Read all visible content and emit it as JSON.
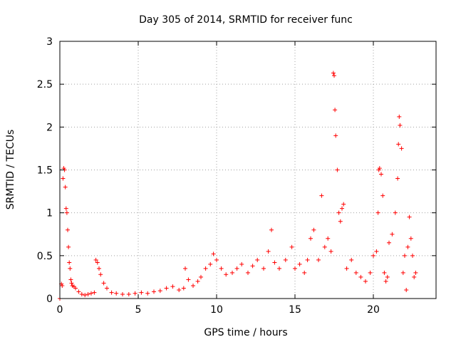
{
  "chart_data": {
    "type": "scatter",
    "title": "Day 305 of 2014, SRMTID for receiver func",
    "xlabel": "GPS time / hours",
    "ylabel": "SRMTID / TECUs",
    "xlim": [
      0,
      24
    ],
    "ylim": [
      0,
      3
    ],
    "x_ticks": [
      0,
      5,
      10,
      15,
      20
    ],
    "x_tick_labels": [
      "0",
      "5",
      "10",
      "15",
      "20"
    ],
    "y_ticks": [
      0,
      0.5,
      1,
      1.5,
      2,
      2.5,
      3
    ],
    "y_tick_labels": [
      "0",
      "0.5",
      "1",
      "1.5",
      "2",
      "2.5",
      "3"
    ],
    "grid": true,
    "marker": "plus",
    "colors": {
      "series": "#ff0000",
      "grid": "#a0a0a0",
      "axes": "#000000"
    },
    "series": [
      {
        "name": "SRMTID",
        "x": [
          0.0,
          0.1,
          0.15,
          0.2,
          0.25,
          0.3,
          0.35,
          0.4,
          0.45,
          0.5,
          0.55,
          0.6,
          0.65,
          0.7,
          0.75,
          0.8,
          0.9,
          1.0,
          1.2,
          1.4,
          1.6,
          1.8,
          2.0,
          2.2,
          2.3,
          2.4,
          2.5,
          2.6,
          2.8,
          3.0,
          3.3,
          3.6,
          4.0,
          4.4,
          4.8,
          5.2,
          5.6,
          6.0,
          6.4,
          6.8,
          7.2,
          7.6,
          7.9,
          8.0,
          8.2,
          8.5,
          8.8,
          9.0,
          9.3,
          9.6,
          9.8,
          10.0,
          10.3,
          10.6,
          11.0,
          11.3,
          11.6,
          12.0,
          12.3,
          12.6,
          13.0,
          13.3,
          13.5,
          13.7,
          14.0,
          14.4,
          14.8,
          15.0,
          15.3,
          15.6,
          15.8,
          16.0,
          16.2,
          16.5,
          16.7,
          16.9,
          17.1,
          17.3,
          17.45,
          17.5,
          17.55,
          17.6,
          17.7,
          17.8,
          17.9,
          18.0,
          18.1,
          18.3,
          18.6,
          18.9,
          19.2,
          19.5,
          19.8,
          20.0,
          20.2,
          20.3,
          20.35,
          20.4,
          20.5,
          20.6,
          20.7,
          20.8,
          20.9,
          21.0,
          21.2,
          21.4,
          21.55,
          21.6,
          21.65,
          21.7,
          21.8,
          21.9,
          22.0,
          22.1,
          22.2,
          22.3,
          22.4,
          22.5,
          22.6,
          22.7
        ],
        "y": [
          0.0,
          0.17,
          0.15,
          1.4,
          1.52,
          1.5,
          1.3,
          1.05,
          1.0,
          0.8,
          0.6,
          0.42,
          0.35,
          0.22,
          0.18,
          0.15,
          0.14,
          0.12,
          0.08,
          0.05,
          0.04,
          0.05,
          0.06,
          0.07,
          0.45,
          0.42,
          0.35,
          0.28,
          0.18,
          0.12,
          0.07,
          0.06,
          0.05,
          0.05,
          0.06,
          0.07,
          0.06,
          0.08,
          0.09,
          0.12,
          0.14,
          0.1,
          0.12,
          0.35,
          0.22,
          0.15,
          0.2,
          0.25,
          0.35,
          0.4,
          0.52,
          0.45,
          0.35,
          0.28,
          0.3,
          0.35,
          0.4,
          0.3,
          0.38,
          0.45,
          0.35,
          0.55,
          0.8,
          0.42,
          0.35,
          0.45,
          0.6,
          0.35,
          0.4,
          0.3,
          0.45,
          0.7,
          0.8,
          0.45,
          1.2,
          0.6,
          0.7,
          0.55,
          2.63,
          2.6,
          2.2,
          1.9,
          1.5,
          1.0,
          0.9,
          1.05,
          1.1,
          0.35,
          0.45,
          0.3,
          0.25,
          0.2,
          0.3,
          0.5,
          0.55,
          1.0,
          1.5,
          1.52,
          1.45,
          1.2,
          0.3,
          0.2,
          0.25,
          0.65,
          0.75,
          1.0,
          1.4,
          1.8,
          2.12,
          2.02,
          1.75,
          0.3,
          0.5,
          0.1,
          0.6,
          0.95,
          0.7,
          0.5,
          0.25,
          0.3
        ]
      }
    ]
  }
}
